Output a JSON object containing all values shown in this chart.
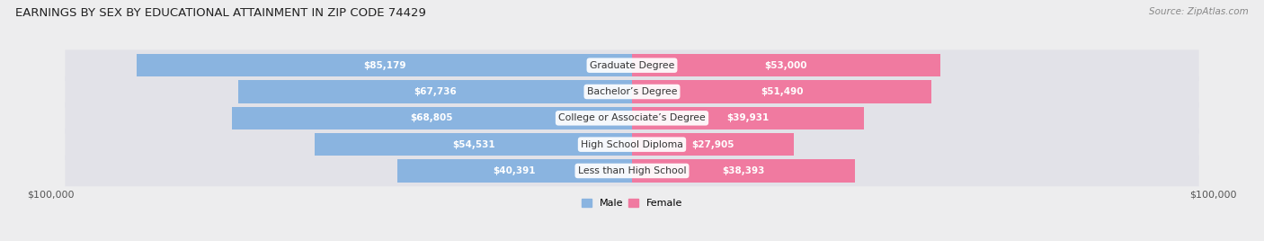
{
  "title": "EARNINGS BY SEX BY EDUCATIONAL ATTAINMENT IN ZIP CODE 74429",
  "source": "Source: ZipAtlas.com",
  "categories": [
    "Less than High School",
    "High School Diploma",
    "College or Associate’s Degree",
    "Bachelor’s Degree",
    "Graduate Degree"
  ],
  "male_values": [
    40391,
    54531,
    68805,
    67736,
    85179
  ],
  "female_values": [
    38393,
    27905,
    39931,
    51490,
    53000
  ],
  "male_color": "#8ab4e0",
  "female_color": "#f07aa0",
  "male_label": "Male",
  "female_label": "Female",
  "max_value": 100000,
  "bg_color": "#ededee",
  "bar_bg_color": "#e2e2e8",
  "title_fontsize": 9.5,
  "label_fontsize": 8.0,
  "value_fontsize": 7.5,
  "source_fontsize": 7.5,
  "axis_label_color": "#555555",
  "title_color": "#222222",
  "category_fontsize": 7.8
}
